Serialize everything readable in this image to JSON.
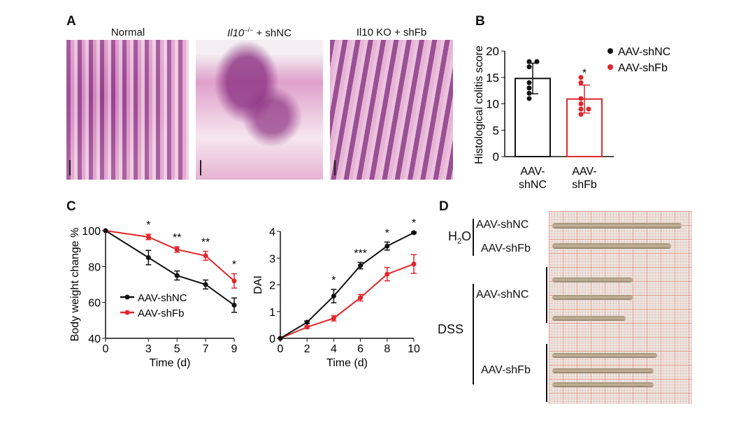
{
  "panels": {
    "a": "A",
    "b": "B",
    "c": "C",
    "d": "D"
  },
  "panel_a": {
    "titles": [
      {
        "main": "Normal",
        "italic": "",
        "sup": "",
        "suffix": ""
      },
      {
        "main": "",
        "italic": "Il10",
        "sup": "−/−",
        "suffix": " + shNC"
      },
      {
        "main": "Il10 KO + shFb",
        "italic": "",
        "sup": "",
        "suffix": ""
      }
    ]
  },
  "panel_d": {
    "groups": [
      {
        "label": "H",
        "sub": "2",
        "tail": "O",
        "rows": [
          "AAV-shNC",
          "AAV-shFb"
        ]
      },
      {
        "label": "DSS",
        "rows": [
          "AAV-shNC",
          "AAV-shFb"
        ]
      }
    ]
  },
  "colors": {
    "shNC": "#111111",
    "shFb": "#e0262b"
  },
  "chart_data": [
    {
      "id": "B",
      "type": "bar",
      "categories": [
        [
          "AAV-",
          "shNC"
        ],
        [
          "AAV-",
          "shFb"
        ]
      ],
      "series": [
        {
          "name": "AAV-shNC",
          "mean": 14.8,
          "sd": 2.9,
          "points": [
            18,
            18,
            17,
            14,
            13,
            12,
            11
          ]
        },
        {
          "name": "AAV-shFb",
          "mean": 10.9,
          "sd": 2.65,
          "points": [
            15,
            14,
            11,
            10,
            9,
            9,
            8
          ]
        }
      ],
      "significance": [
        "",
        "*"
      ],
      "ylabel": "Histological colitis score",
      "ylim": [
        0,
        20
      ],
      "yticks": [
        0,
        5,
        10,
        15,
        20
      ],
      "legend": [
        "AAV-shNC",
        "AAV-shFb"
      ],
      "legend_position": "top-right"
    },
    {
      "id": "C-left",
      "type": "line",
      "x": [
        0,
        3,
        5,
        7,
        9
      ],
      "series": [
        {
          "name": "AAV-shNC",
          "values": [
            100,
            85,
            75,
            70,
            58.5
          ],
          "err": [
            0,
            4,
            2.5,
            2.5,
            4
          ]
        },
        {
          "name": "AAV-shFb",
          "values": [
            100,
            96.5,
            89.5,
            86,
            72
          ],
          "err": [
            0,
            1.5,
            1.5,
            2.5,
            4
          ]
        }
      ],
      "significance": [
        "",
        "*",
        "**",
        "**",
        "*"
      ],
      "xlabel": "Time (d)",
      "ylabel": "Body weight change %",
      "ylim": [
        40,
        100
      ],
      "yticks": [
        40,
        60,
        80,
        100
      ],
      "xticks": [
        0,
        3,
        5,
        7,
        9
      ],
      "legend_position": "bottom-left"
    },
    {
      "id": "C-right",
      "type": "line",
      "x": [
        0,
        2,
        4,
        6,
        8,
        10
      ],
      "series": [
        {
          "name": "AAV-shNC",
          "values": [
            0,
            0.6,
            1.58,
            2.72,
            3.45,
            3.95
          ],
          "err": [
            0,
            0.05,
            0.25,
            0.12,
            0.15,
            0.03
          ]
        },
        {
          "name": "AAV-shFb",
          "values": [
            0,
            0.42,
            0.75,
            1.52,
            2.4,
            2.78
          ],
          "err": [
            0,
            0.05,
            0.1,
            0.12,
            0.25,
            0.35
          ]
        }
      ],
      "significance": [
        "",
        "",
        "*",
        "***",
        "*",
        "*"
      ],
      "xlabel": "Time (d)",
      "ylabel": "DAI",
      "ylim": [
        0,
        4
      ],
      "yticks": [
        0,
        1,
        2,
        3,
        4
      ],
      "xticks": [
        0,
        2,
        4,
        6,
        8,
        10
      ]
    }
  ]
}
